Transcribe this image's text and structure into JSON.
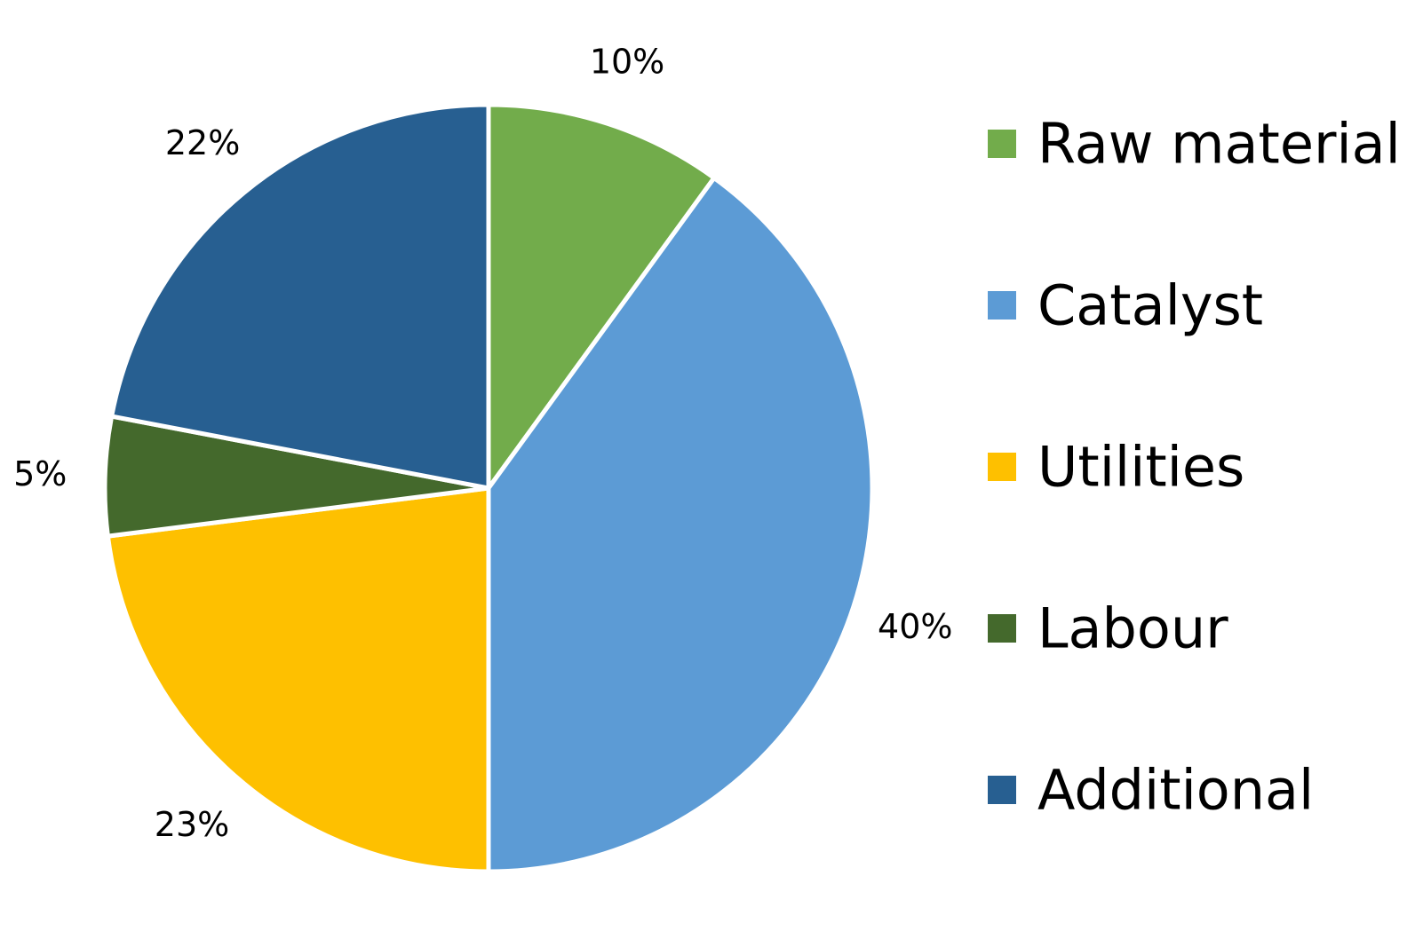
{
  "chart_data": {
    "type": "pie",
    "title": "",
    "categories": [
      "Raw material",
      "Catalyst",
      "Utilities",
      "Labour",
      "Additional"
    ],
    "values": [
      10,
      40,
      23,
      5,
      22
    ],
    "labels": [
      "10%",
      "40%",
      "23%",
      "5%",
      "22%"
    ],
    "colors": [
      "#72AC4B",
      "#5C9BD5",
      "#FEC000",
      "#44692C",
      "#275F91"
    ],
    "start_angle_deg": 0,
    "direction": "clockwise",
    "legend_position": "right"
  }
}
